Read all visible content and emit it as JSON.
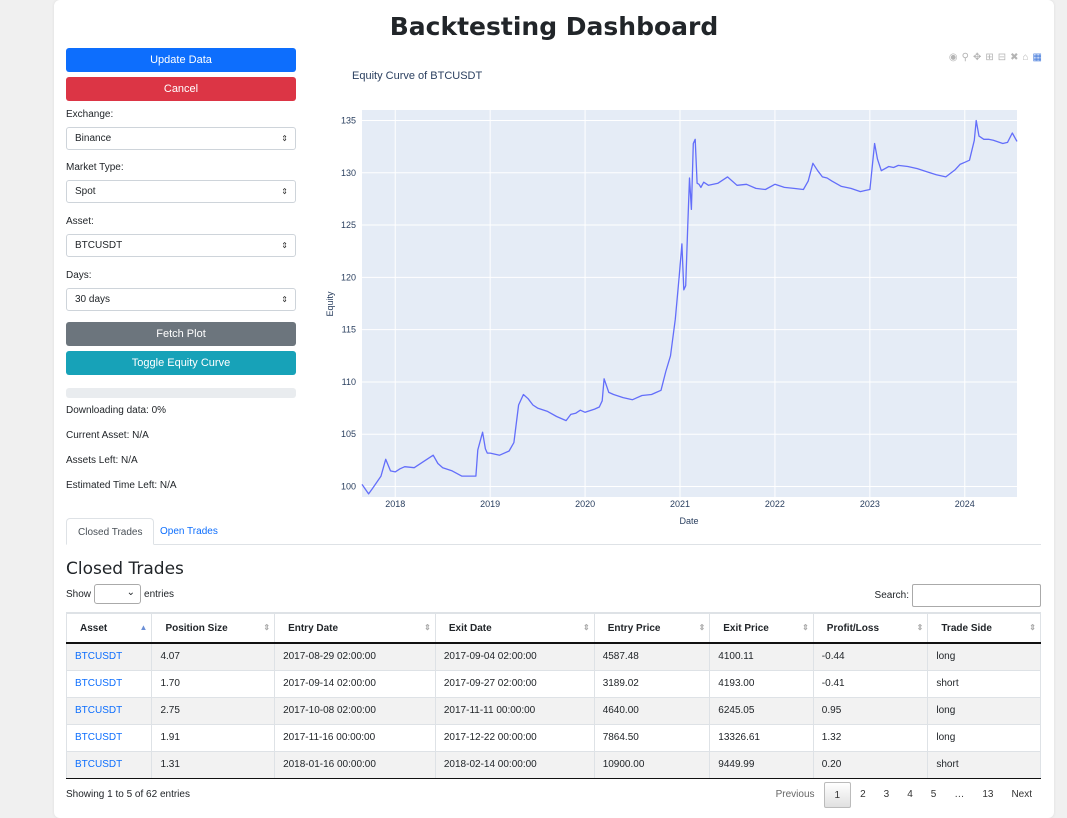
{
  "title": "Backtesting Dashboard",
  "controls": {
    "update_label": "Update Data",
    "cancel_label": "Cancel",
    "exchange_label": "Exchange:",
    "exchange_value": "Binance",
    "market_label": "Market Type:",
    "market_value": "Spot",
    "asset_label": "Asset:",
    "asset_value": "BTCUSDT",
    "days_label": "Days:",
    "days_value": "30 days",
    "fetch_label": "Fetch Plot",
    "toggle_label": "Toggle Equity Curve",
    "progress": 0
  },
  "status": {
    "downloading": "Downloading data: 0%",
    "current_asset": "Current Asset: N/A",
    "assets_left": "Assets Left: N/A",
    "eta": "Estimated Time Left: N/A"
  },
  "chart_data": {
    "type": "line",
    "title": "Equity Curve of BTCUSDT",
    "xlabel": "Date",
    "ylabel": "Equity",
    "xlim": [
      2017.65,
      2024.55
    ],
    "ylim": [
      99,
      136
    ],
    "x_ticks": [
      2018,
      2019,
      2020,
      2021,
      2022,
      2023,
      2024
    ],
    "y_ticks": [
      100,
      105,
      110,
      115,
      120,
      125,
      130,
      135
    ],
    "line_color": "#636efa",
    "plot_bg": "#e5ecf6",
    "grid": true,
    "series": [
      {
        "x": [
          2017.65,
          2017.72,
          2017.76,
          2017.85,
          2017.9,
          2017.95,
          2018.0,
          2018.05,
          2018.1,
          2018.2,
          2018.3,
          2018.4,
          2018.45,
          2018.5,
          2018.6,
          2018.7,
          2018.85,
          2018.87,
          2018.92,
          2018.95,
          2018.97,
          2019.0,
          2019.1,
          2019.2,
          2019.25,
          2019.3,
          2019.35,
          2019.4,
          2019.45,
          2019.5,
          2019.6,
          2019.7,
          2019.8,
          2019.85,
          2019.9,
          2019.95,
          2020.0,
          2020.1,
          2020.15,
          2020.18,
          2020.2,
          2020.25,
          2020.3,
          2020.4,
          2020.5,
          2020.6,
          2020.7,
          2020.75,
          2020.8,
          2020.85,
          2020.9,
          2020.95,
          2020.99,
          2021.02,
          2021.04,
          2021.06,
          2021.08,
          2021.1,
          2021.12,
          2021.14,
          2021.16,
          2021.18,
          2021.2,
          2021.22,
          2021.25,
          2021.3,
          2021.4,
          2021.5,
          2021.6,
          2021.7,
          2021.8,
          2021.9,
          2022.0,
          2022.1,
          2022.2,
          2022.3,
          2022.35,
          2022.4,
          2022.45,
          2022.5,
          2022.55,
          2022.6,
          2022.7,
          2022.8,
          2022.9,
          2022.95,
          2023.0,
          2023.05,
          2023.08,
          2023.12,
          2023.2,
          2023.25,
          2023.3,
          2023.4,
          2023.5,
          2023.6,
          2023.7,
          2023.8,
          2023.9,
          2023.95,
          2024.0,
          2024.05,
          2024.1,
          2024.12,
          2024.15,
          2024.2,
          2024.25,
          2024.3,
          2024.4,
          2024.45,
          2024.5,
          2024.55
        ],
        "y": [
          100.2,
          99.3,
          99.8,
          101.0,
          102.6,
          101.5,
          101.4,
          101.7,
          101.9,
          101.8,
          102.4,
          103.0,
          102.2,
          101.8,
          101.5,
          101.0,
          101.0,
          103.5,
          105.2,
          103.6,
          103.2,
          103.2,
          103.0,
          103.4,
          104.2,
          107.8,
          108.8,
          108.4,
          107.8,
          107.5,
          107.2,
          106.7,
          106.3,
          106.9,
          107.0,
          107.3,
          107.1,
          107.4,
          107.6,
          108.2,
          110.3,
          109.0,
          108.8,
          108.5,
          108.3,
          108.7,
          108.8,
          109.0,
          109.2,
          111.0,
          112.5,
          116.0,
          120.0,
          123.2,
          118.8,
          119.2,
          124.5,
          129.5,
          126.5,
          132.8,
          133.2,
          129.0,
          128.9,
          128.6,
          129.1,
          128.8,
          129.0,
          129.6,
          128.8,
          128.9,
          128.5,
          128.4,
          128.9,
          128.6,
          128.5,
          128.4,
          129.2,
          130.9,
          130.2,
          129.6,
          129.5,
          129.2,
          128.7,
          128.5,
          128.2,
          128.3,
          128.4,
          132.8,
          131.3,
          130.2,
          130.6,
          130.5,
          130.7,
          130.6,
          130.4,
          130.1,
          129.8,
          129.6,
          130.3,
          130.8,
          131.0,
          131.2,
          133.1,
          135.0,
          133.5,
          133.2,
          133.2,
          133.1,
          132.8,
          132.9,
          133.8,
          133.0
        ]
      }
    ]
  },
  "modebar_icons": [
    "camera-icon",
    "zoom-icon",
    "pan-icon",
    "zoom-in-icon",
    "zoom-out-icon",
    "autoscale-icon",
    "home-icon",
    "plotly-logo-icon"
  ],
  "tabs": [
    {
      "label": "Closed Trades"
    },
    {
      "label": "Open Trades"
    }
  ],
  "table_title": "Closed Trades",
  "show_label": "Show",
  "entries_label": "entries",
  "search_label": "Search:",
  "table": {
    "columns": [
      "Asset",
      "Position Size",
      "Entry Date",
      "Exit Date",
      "Entry Price",
      "Exit Price",
      "Profit/Loss",
      "Trade Side"
    ],
    "rows": [
      [
        "BTCUSDT",
        "4.07",
        "2017-08-29 02:00:00",
        "2017-09-04 02:00:00",
        "4587.48",
        "4100.11",
        "-0.44",
        "long"
      ],
      [
        "BTCUSDT",
        "1.70",
        "2017-09-14 02:00:00",
        "2017-09-27 02:00:00",
        "3189.02",
        "4193.00",
        "-0.41",
        "short"
      ],
      [
        "BTCUSDT",
        "2.75",
        "2017-10-08 02:00:00",
        "2017-11-11 00:00:00",
        "4640.00",
        "6245.05",
        "0.95",
        "long"
      ],
      [
        "BTCUSDT",
        "1.91",
        "2017-11-16 00:00:00",
        "2017-12-22 00:00:00",
        "7864.50",
        "13326.61",
        "1.32",
        "long"
      ],
      [
        "BTCUSDT",
        "1.31",
        "2018-01-16 00:00:00",
        "2018-02-14 00:00:00",
        "10900.00",
        "9449.99",
        "0.20",
        "short"
      ]
    ]
  },
  "info": "Showing 1 to 5 of 62 entries",
  "pagination": [
    "Previous",
    "1",
    "2",
    "3",
    "4",
    "5",
    "…",
    "13",
    "Next"
  ]
}
